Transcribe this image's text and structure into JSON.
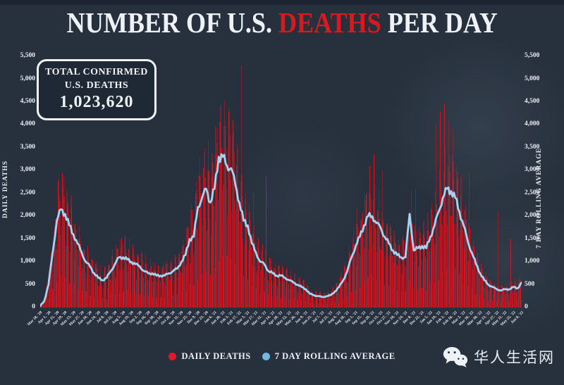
{
  "title": {
    "prefix": "NUMBER OF U.S. ",
    "highlight": "DEATHS",
    "suffix": " PER DAY"
  },
  "stats_box": {
    "line1": "TOTAL CONFIRMED",
    "line2": "U.S. DEATHS",
    "value": "1,023,620"
  },
  "axes": {
    "left_title": "DAILY DEATHS",
    "right_title": "7 DAY ROLLING AVERAGE",
    "y_ticks": [
      "0",
      "500",
      "1,000",
      "1,500",
      "2,000",
      "2,500",
      "3,000",
      "3,500",
      "4,000",
      "4,500",
      "5,000",
      "5,500"
    ]
  },
  "legend": [
    {
      "label": "DAILY DEATHS",
      "color": "#e01a28",
      "series": "bars"
    },
    {
      "label": "7 DAY ROLLING AVERAGE",
      "color": "#73b6e0",
      "series": "line"
    }
  ],
  "watermark": {
    "text": "华人生活网",
    "icon": "wechat-icon"
  },
  "colors": {
    "background": "#27313e",
    "bar_red": "#ce1522",
    "line_blue": "#a6d3f1",
    "text_white": "#eef1f5",
    "title_red": "#d8191f"
  },
  "chart_data": {
    "type": "bar+line",
    "title": "NUMBER OF U.S. DEATHS PER DAY",
    "xlabel": "",
    "ylabel_left": "DAILY DEATHS",
    "ylabel_right": "7 DAY ROLLING AVERAGE",
    "ylim": [
      0,
      5500
    ],
    "y_tick_step": 500,
    "grid": false,
    "legend_position": "bottom",
    "x_labels": [
      "Mar 18, '20",
      "Apr 1, '20",
      "Apr 15, '20",
      "Apr 29, '20",
      "May 13, '20",
      "May 27, '20",
      "Jun 10, '20",
      "Jun 24, '20",
      "Jul 8, '20",
      "Jul 22, '20",
      "Aug 5, '20",
      "Aug 19, '20",
      "Sep 2, '20",
      "Sep 16, '20",
      "Sep 30, '20",
      "Oct 14, '20",
      "Oct 28, '20",
      "Nov 11, '20",
      "Nov 25, '20",
      "Dec 9, '20",
      "Dec 23, '20",
      "Jan 6, '21",
      "Jan 20, '21",
      "Feb 3, '21",
      "Feb 17, '21",
      "Mar 3, '21",
      "Mar 17, '21",
      "Mar 31, '21",
      "Apr 14, '21",
      "Apr 28, '21",
      "May 12, '21",
      "May 26, '21",
      "Jun 9, '21",
      "Jun 23, '21",
      "Jul 7, '21",
      "Jul 21, '21",
      "Aug 4, '21",
      "Aug 18, '21",
      "Sep 1, '21",
      "Sep 15, '21",
      "Sep 29, '21",
      "Oct 13, '21",
      "Oct 27, '21",
      "Nov 10, '21",
      "Nov 24, '21",
      "Dec 8, '21",
      "Dec 22, '21",
      "Jan 5, '22",
      "Jan 19, '22",
      "Feb 2, '22",
      "Feb 16, '22",
      "Mar 2, '22",
      "Mar 16, '22",
      "Mar 30, '22",
      "Apr 13, '22",
      "Apr 27, '22",
      "May 11, '22",
      "May 25, '22",
      "Jun 8, '22"
    ],
    "series": [
      {
        "name": "DAILY DEATHS",
        "type": "bar",
        "color": "#ce1522",
        "weekly_avg_base": [
          30,
          150,
          500,
          1200,
          1900,
          2150,
          2050,
          1800,
          1600,
          1400,
          1200,
          1000,
          900,
          750,
          650,
          600,
          650,
          800,
          950,
          1100,
          1100,
          1050,
          1000,
          950,
          900,
          800,
          750,
          750,
          700,
          700,
          700,
          750,
          800,
          850,
          1000,
          1150,
          1500,
          1550,
          2200,
          2400,
          2600,
          2300,
          2600,
          3300,
          3300,
          3100,
          3050,
          2700,
          2300,
          1900,
          1800,
          1400,
          1200,
          1000,
          950,
          800,
          750,
          700,
          700,
          650,
          600,
          550,
          500,
          450,
          400,
          300,
          270,
          250,
          230,
          250,
          270,
          350,
          450,
          600,
          800,
          1100,
          1350,
          1550,
          1800,
          2000,
          2000,
          1850,
          1750,
          1550,
          1400,
          1250,
          1150,
          1100,
          1100,
          2050,
          1250,
          1300,
          1350,
          1300,
          1550,
          1800,
          2100,
          2400,
          2600,
          2550,
          2400,
          2100,
          1800,
          1450,
          1200,
          950,
          750,
          600,
          500,
          450,
          400,
          375,
          400,
          400,
          450,
          420,
          550
        ],
        "weekday_factors": [
          0.32,
          0.72,
          1.22,
          1.3,
          1.25,
          1.12,
          0.8
        ],
        "spike_days": [
          [
            5,
            2650
          ],
          [
            6,
            2500
          ],
          [
            38,
            3300
          ],
          [
            39,
            3400
          ],
          [
            40,
            3650
          ],
          [
            43,
            4400
          ],
          [
            44,
            4550
          ],
          [
            45,
            4300
          ],
          [
            46,
            4100
          ],
          [
            48,
            5300
          ],
          [
            51,
            2500
          ],
          [
            54,
            2900
          ],
          [
            79,
            3100
          ],
          [
            80,
            3350
          ],
          [
            82,
            3000
          ],
          [
            90,
            2600
          ],
          [
            95,
            4000
          ],
          [
            96,
            4300
          ],
          [
            97,
            4450
          ],
          [
            98,
            4100
          ],
          [
            99,
            3900
          ],
          [
            103,
            3000
          ],
          [
            110,
            2100
          ],
          [
            113,
            1500
          ]
        ]
      },
      {
        "name": "7 DAY ROLLING AVERAGE",
        "type": "line",
        "color": "#a6d3f1",
        "weekly_values": [
          30,
          150,
          500,
          1200,
          1900,
          2150,
          2050,
          1800,
          1600,
          1400,
          1200,
          1000,
          900,
          750,
          650,
          600,
          650,
          800,
          950,
          1100,
          1100,
          1050,
          1000,
          950,
          900,
          800,
          750,
          750,
          700,
          700,
          700,
          750,
          800,
          850,
          1000,
          1150,
          1500,
          1550,
          2200,
          2400,
          2600,
          2300,
          2600,
          3300,
          3300,
          3100,
          3050,
          2700,
          2300,
          1900,
          1800,
          1400,
          1200,
          1000,
          950,
          800,
          750,
          700,
          700,
          650,
          600,
          550,
          500,
          450,
          400,
          300,
          270,
          250,
          230,
          250,
          270,
          350,
          450,
          600,
          800,
          1100,
          1350,
          1550,
          1800,
          2000,
          2000,
          1850,
          1750,
          1550,
          1400,
          1250,
          1150,
          1100,
          1100,
          2050,
          1250,
          1300,
          1350,
          1300,
          1550,
          1800,
          2100,
          2400,
          2600,
          2550,
          2400,
          2100,
          1800,
          1450,
          1200,
          950,
          750,
          600,
          500,
          450,
          400,
          375,
          400,
          400,
          450,
          420,
          550
        ]
      }
    ]
  }
}
